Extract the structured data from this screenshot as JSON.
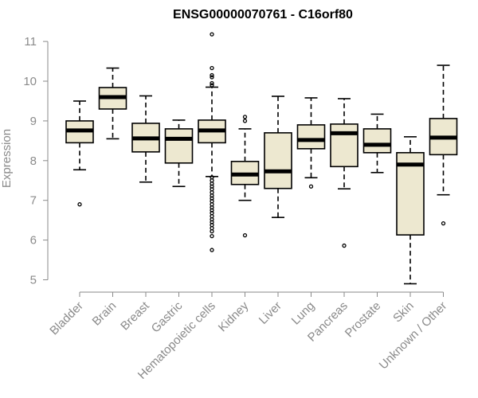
{
  "chart_data": {
    "type": "boxplot",
    "title": "ENSG00000070761 - C16orf80",
    "xlabel": "",
    "ylabel": "Expression",
    "ylim": [
      4.7,
      11.2
    ],
    "yticks": [
      5,
      6,
      7,
      8,
      9,
      10,
      11
    ],
    "box_fill": "#ede8d0",
    "box_stroke": "#000000",
    "axis_color": "#8a8a8a",
    "categories": [
      "Bladder",
      "Brain",
      "Breast",
      "Gastric",
      "Hematopoietic cells",
      "Kidney",
      "Liver",
      "Lung",
      "Pancreas",
      "Prostate",
      "Skin",
      "Unknown / Other"
    ],
    "boxes": [
      {
        "name": "Bladder",
        "whisker_low": 7.77,
        "q1": 8.45,
        "median": 8.76,
        "q3": 9.0,
        "whisker_high": 9.5,
        "outliers": [
          6.9
        ]
      },
      {
        "name": "Brain",
        "whisker_low": 8.55,
        "q1": 9.3,
        "median": 9.6,
        "q3": 9.84,
        "whisker_high": 10.33,
        "outliers": []
      },
      {
        "name": "Breast",
        "whisker_low": 7.46,
        "q1": 8.22,
        "median": 8.56,
        "q3": 8.94,
        "whisker_high": 9.63,
        "outliers": []
      },
      {
        "name": "Gastric",
        "whisker_low": 7.35,
        "q1": 7.94,
        "median": 8.55,
        "q3": 8.8,
        "whisker_high": 9.02,
        "outliers": []
      },
      {
        "name": "Hematopoietic cells",
        "whisker_low": 7.6,
        "q1": 8.45,
        "median": 8.76,
        "q3": 9.02,
        "whisker_high": 9.85,
        "outliers": [
          11.18,
          10.33,
          10.15,
          10.1,
          9.95,
          9.9,
          7.58,
          7.5,
          7.42,
          7.35,
          7.28,
          7.2,
          7.12,
          7.05,
          6.98,
          6.9,
          6.82,
          6.75,
          6.68,
          6.6,
          6.52,
          6.45,
          6.38,
          6.3,
          6.22,
          6.1,
          5.75
        ]
      },
      {
        "name": "Kidney",
        "whisker_low": 7.0,
        "q1": 7.4,
        "median": 7.65,
        "q3": 7.98,
        "whisker_high": 8.8,
        "outliers": [
          9.1,
          9.0,
          6.12
        ]
      },
      {
        "name": "Liver",
        "whisker_low": 6.57,
        "q1": 7.3,
        "median": 7.73,
        "q3": 8.7,
        "whisker_high": 9.62,
        "outliers": []
      },
      {
        "name": "Lung",
        "whisker_low": 7.57,
        "q1": 8.3,
        "median": 8.52,
        "q3": 8.9,
        "whisker_high": 9.58,
        "outliers": [
          7.35
        ]
      },
      {
        "name": "Pancreas",
        "whisker_low": 7.29,
        "q1": 7.85,
        "median": 8.69,
        "q3": 8.92,
        "whisker_high": 9.56,
        "outliers": [
          5.86
        ]
      },
      {
        "name": "Prostate",
        "whisker_low": 7.7,
        "q1": 8.2,
        "median": 8.4,
        "q3": 8.8,
        "whisker_high": 9.17,
        "outliers": []
      },
      {
        "name": "Skin",
        "whisker_low": 4.9,
        "q1": 6.13,
        "median": 7.9,
        "q3": 8.2,
        "whisker_high": 8.6,
        "outliers": []
      },
      {
        "name": "Unknown / Other",
        "whisker_low": 7.14,
        "q1": 8.15,
        "median": 8.58,
        "q3": 9.06,
        "whisker_high": 10.4,
        "outliers": [
          6.42
        ]
      }
    ]
  }
}
